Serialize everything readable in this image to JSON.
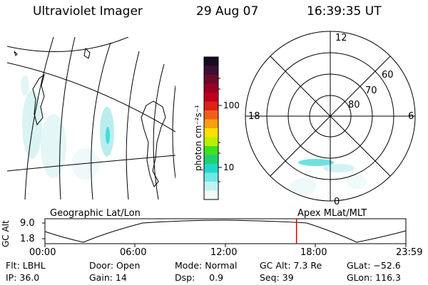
{
  "header": {
    "title": "Ultraviolet Imager",
    "date": "29 Aug 07",
    "time": "16:39:35 UT"
  },
  "colorbar": {
    "unit_label": "photon cm⁻²s⁻¹",
    "ticks": [
      "100",
      "10"
    ],
    "colors": [
      "#1a0b22",
      "#3c0f34",
      "#6a0a2a",
      "#9a0025",
      "#c0001a",
      "#e0201a",
      "#f0601a",
      "#f8a010",
      "#ffe000",
      "#b8f000",
      "#40e020",
      "#20d070",
      "#20d8c8",
      "#70e8e8",
      "#c0f2f2",
      "#f4fbfb"
    ]
  },
  "geographic_panel": {
    "label": "Geographic Lat/Lon"
  },
  "polar_plot": {
    "label": "Apex MLat/MLT",
    "mlt_labels": {
      "top": "12",
      "left": "18",
      "right": "6",
      "bottom": "0"
    },
    "lat_labels": [
      "60",
      "70",
      "80"
    ]
  },
  "altitude_plot": {
    "axis_title": "GC Alt",
    "y_ticks": [
      "9.0",
      "1.8"
    ],
    "x_ticks": [
      "00:00",
      "06:00",
      "12:00",
      "18:00",
      "23:59"
    ],
    "current_time_fraction": 0.697,
    "marker_color": "#e00000"
  },
  "info": {
    "flt": "Flt: LBHL",
    "door": "Door: Open",
    "mode": "Mode: Normal",
    "gc_alt": "GC Alt: 7.3 Re",
    "glat": "GLat: −52.6",
    "ip": "IP: 36.0",
    "gain": "Gain: 14",
    "dsp": "Dsp:     0.9",
    "seq": "Seq: 39",
    "glon": "GLon: 116.3"
  }
}
